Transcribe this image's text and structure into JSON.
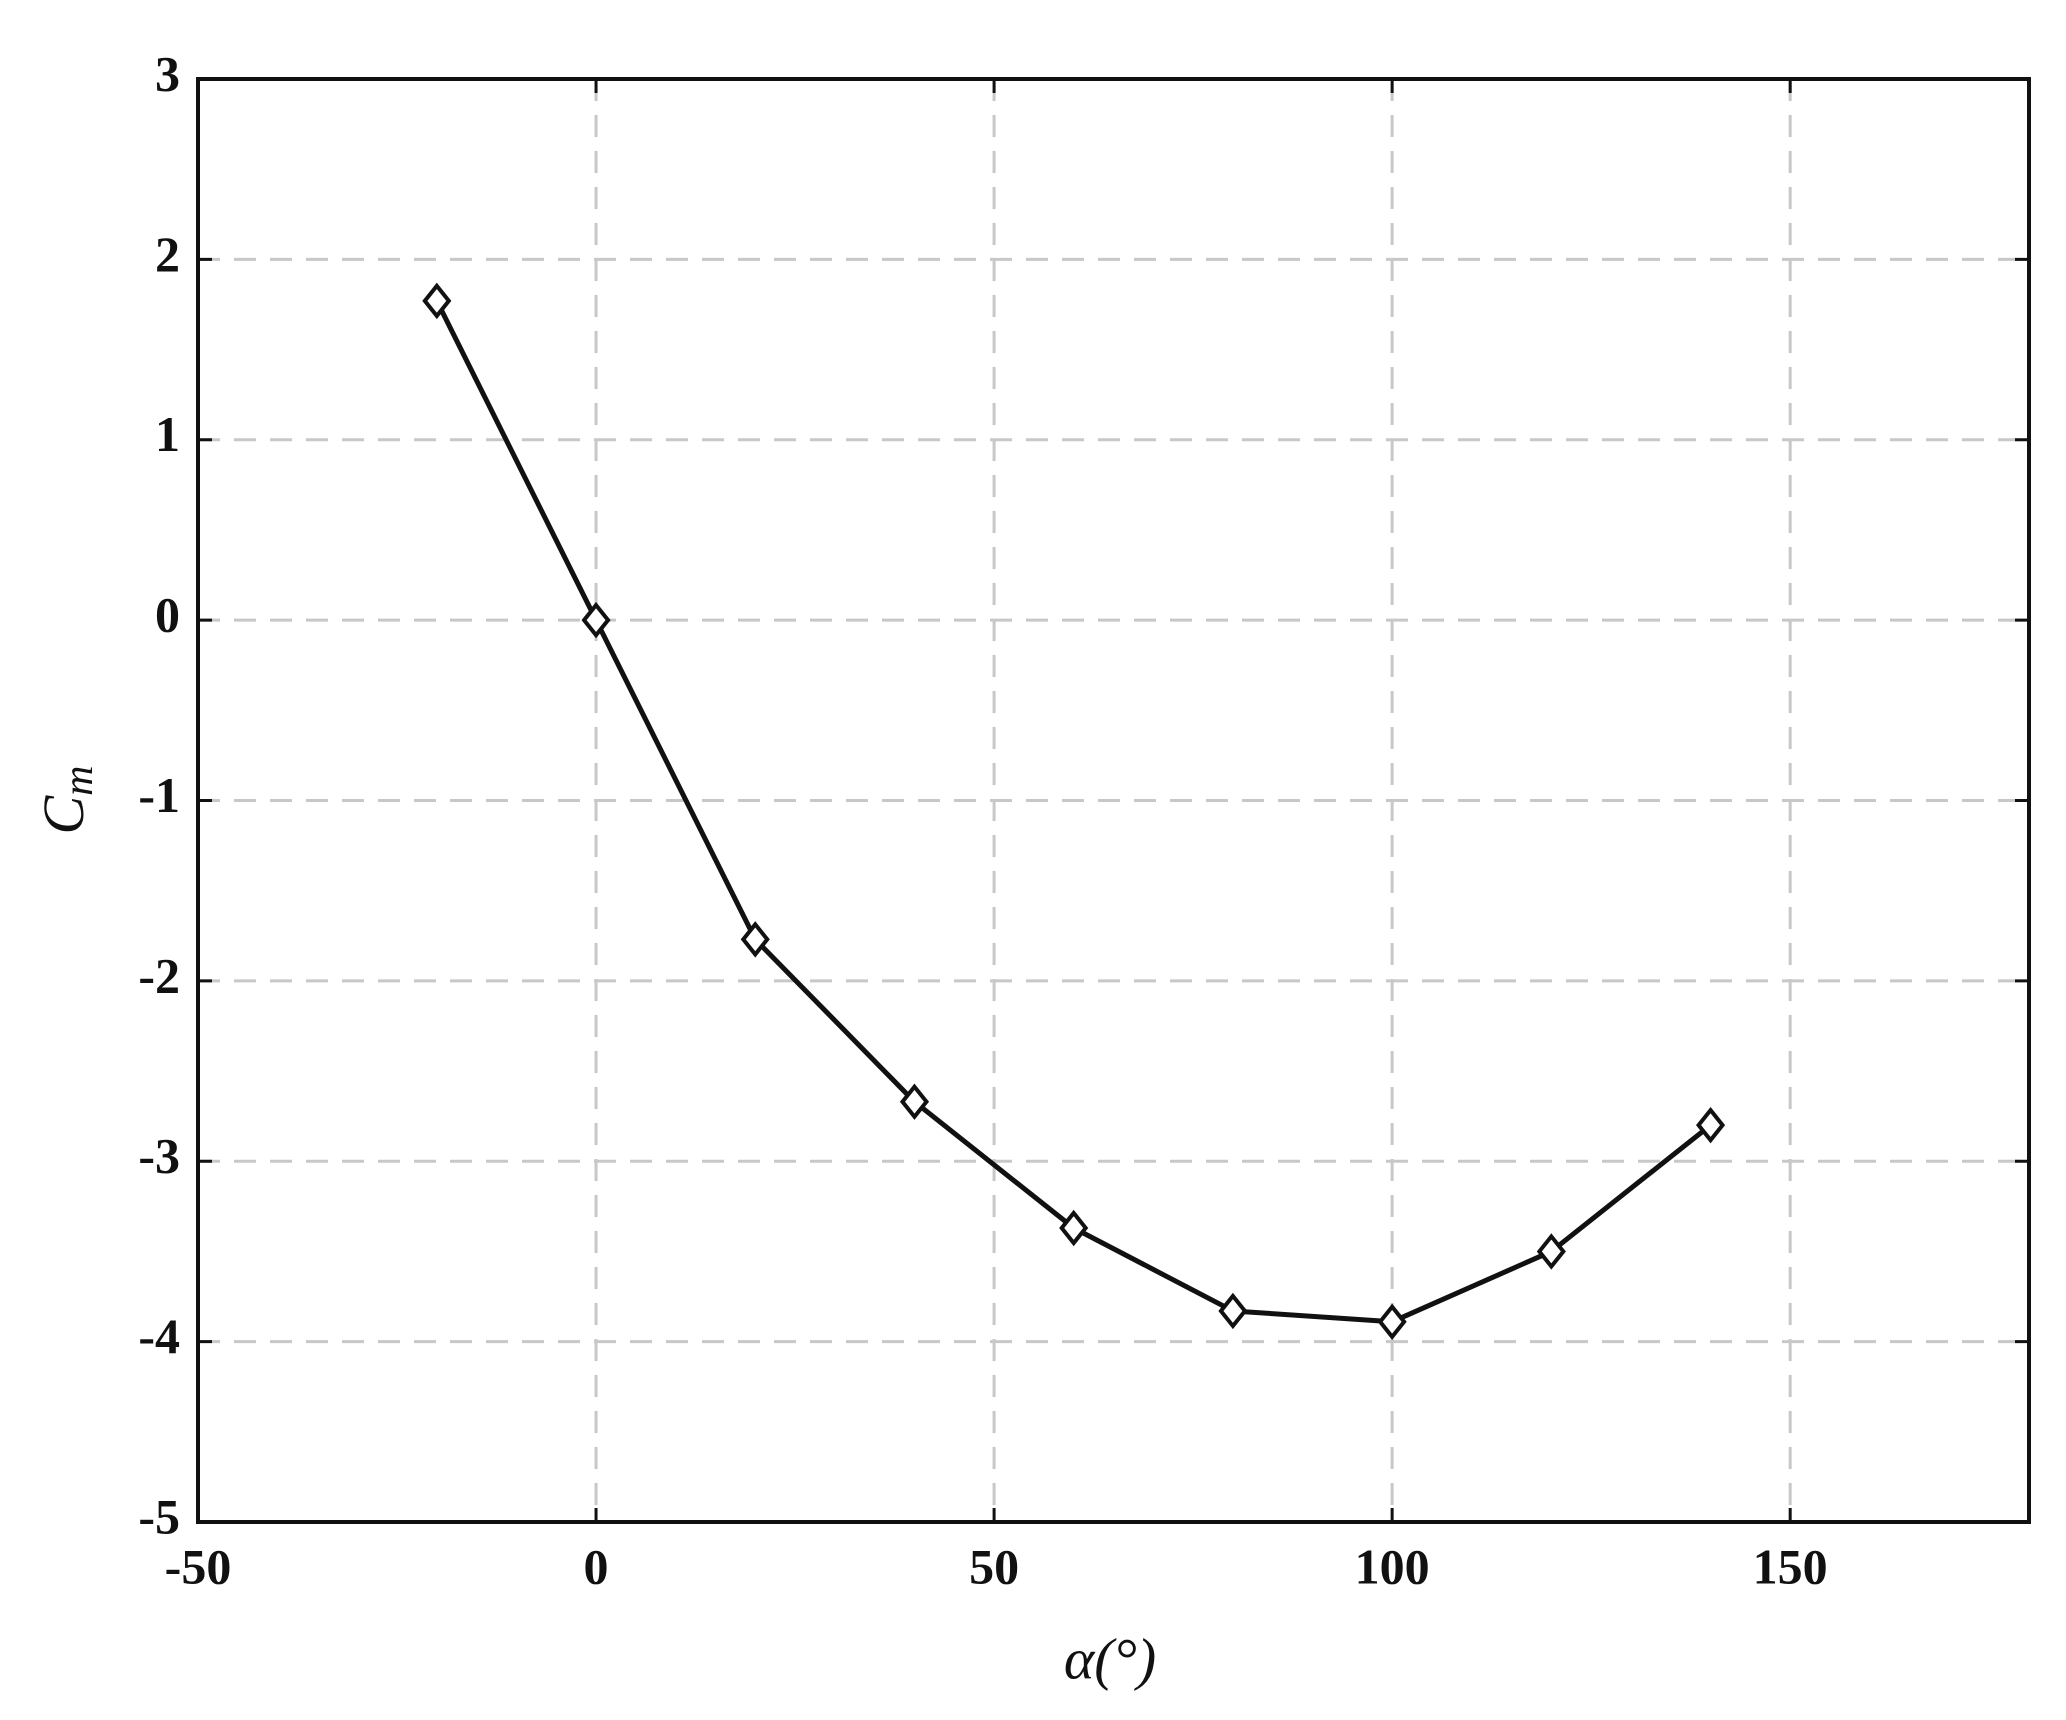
{
  "chart_data": {
    "type": "line",
    "xlabel": "α(°)",
    "ylabel": "C",
    "ylabel_sub": "m",
    "x": [
      -20,
      0,
      20,
      40,
      60,
      80,
      100,
      120,
      140
    ],
    "series": [
      {
        "color": "#111111",
        "values": [
          1.77,
          0,
          -1.77,
          -2.67,
          -3.37,
          -3.83,
          -3.89,
          -3.5,
          -2.8
        ]
      }
    ],
    "xlim": [
      -50,
      180
    ],
    "ylim": [
      -5,
      3
    ],
    "xticks": [
      -50,
      0,
      50,
      100,
      150
    ],
    "yticks": [
      -5,
      -4,
      -3,
      -2,
      -1,
      0,
      1,
      2,
      3
    ],
    "grid": true,
    "marker": "diamond"
  }
}
